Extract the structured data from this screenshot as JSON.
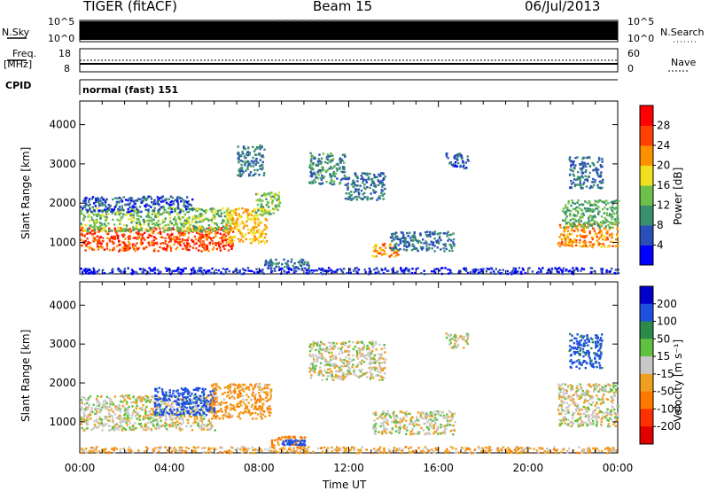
{
  "header": {
    "radar": "TIGER (fitACF)",
    "beam": "Beam 15",
    "date": "06/Jul/2013"
  },
  "status_panels": {
    "nsky_label": "N.Sky",
    "nsky_ticks": [
      "10^5",
      "10^0"
    ],
    "nsearch_label": "N.Search",
    "nsearch_ticks": [
      "10^5",
      "10^0"
    ],
    "freq_label": "Freq.",
    "freq_unit": "[MHz]",
    "freq_ticks": [
      "18",
      "8"
    ],
    "nave_label": "Nave",
    "nave_ticks": [
      "60",
      "0"
    ],
    "cpid_label": "CPID",
    "cpid_value": "normal (fast) 151"
  },
  "chart_data": [
    {
      "type": "heatmap",
      "name": "power",
      "ylabel": "Slant Range [km]",
      "yticks": [
        1000,
        2000,
        3000,
        4000
      ],
      "ylim": [
        200,
        4600
      ],
      "xlim": [
        0,
        24
      ],
      "colorbar": {
        "label": "Power [dB]",
        "ticks": [
          "4",
          "8",
          "12",
          "16",
          "20",
          "24",
          "28"
        ],
        "colors": [
          "#0000ff",
          "#2a4fb8",
          "#3a8f6f",
          "#6ec04a",
          "#f0e020",
          "#ff9000",
          "#ff4000",
          "#ff0000"
        ]
      },
      "regions": [
        {
          "t0": 0.0,
          "t1": 6.8,
          "r0": 800,
          "r1": 1400,
          "level": 26
        },
        {
          "t0": 0.0,
          "t1": 6.8,
          "r0": 1300,
          "r1": 1900,
          "level": 14
        },
        {
          "t0": 0.0,
          "t1": 5.0,
          "r0": 1800,
          "r1": 2200,
          "level": 6
        },
        {
          "t0": 6.5,
          "t1": 8.3,
          "r0": 1000,
          "r1": 1900,
          "level": 20
        },
        {
          "t0": 7.8,
          "t1": 8.9,
          "r0": 1700,
          "r1": 2300,
          "level": 14
        },
        {
          "t0": 7.0,
          "t1": 8.2,
          "r0": 2700,
          "r1": 3500,
          "level": 8
        },
        {
          "t0": 8.2,
          "t1": 10.2,
          "r0": 350,
          "r1": 600,
          "level": 8
        },
        {
          "t0": 10.2,
          "t1": 11.8,
          "r0": 2500,
          "r1": 3300,
          "level": 10
        },
        {
          "t0": 11.8,
          "t1": 13.6,
          "r0": 2100,
          "r1": 2800,
          "level": 8
        },
        {
          "t0": 13.0,
          "t1": 14.2,
          "r0": 650,
          "r1": 1000,
          "level": 22
        },
        {
          "t0": 13.8,
          "t1": 16.7,
          "r0": 800,
          "r1": 1300,
          "level": 8
        },
        {
          "t0": 16.3,
          "t1": 17.3,
          "r0": 2900,
          "r1": 3300,
          "level": 6
        },
        {
          "t0": 21.3,
          "t1": 24.0,
          "r0": 900,
          "r1": 1500,
          "level": 22
        },
        {
          "t0": 21.5,
          "t1": 24.0,
          "r0": 1400,
          "r1": 2100,
          "level": 12
        },
        {
          "t0": 21.8,
          "t1": 23.3,
          "r0": 2400,
          "r1": 3200,
          "level": 8
        },
        {
          "t0": 0.0,
          "t1": 24.0,
          "r0": 220,
          "r1": 380,
          "level": 4
        }
      ]
    },
    {
      "type": "heatmap",
      "name": "velocity",
      "ylabel": "Slant Range [km]",
      "yticks": [
        1000,
        2000,
        3000,
        4000
      ],
      "ylim": [
        200,
        4600
      ],
      "xlim": [
        0,
        24
      ],
      "colorbar": {
        "label": "Velocity [m s⁻¹]",
        "ticks": [
          "200",
          "100",
          "50",
          "15",
          "-15",
          "-50",
          "-100",
          "-200"
        ],
        "colors": [
          "#0000c8",
          "#1e50e0",
          "#2c8a4a",
          "#60c040",
          "#c8c8c8",
          "#f0a020",
          "#ff7800",
          "#ff3000",
          "#e00000"
        ]
      },
      "regions": [
        {
          "t0": 0.0,
          "t1": 6.0,
          "r0": 800,
          "r1": 1700,
          "level": 0
        },
        {
          "t0": 3.3,
          "t1": 6.0,
          "r0": 1200,
          "r1": 1900,
          "level": 150
        },
        {
          "t0": 5.8,
          "t1": 8.5,
          "r0": 1100,
          "r1": 2000,
          "level": -40
        },
        {
          "t0": 8.5,
          "t1": 10.0,
          "r0": 400,
          "r1": 650,
          "level": -60
        },
        {
          "t0": 9.0,
          "t1": 10.0,
          "r0": 420,
          "r1": 560,
          "level": 150
        },
        {
          "t0": 10.2,
          "t1": 13.6,
          "r0": 2100,
          "r1": 3100,
          "level": 0
        },
        {
          "t0": 13.0,
          "t1": 16.7,
          "r0": 700,
          "r1": 1300,
          "level": 0
        },
        {
          "t0": 16.3,
          "t1": 17.3,
          "r0": 2900,
          "r1": 3300,
          "level": 0
        },
        {
          "t0": 21.3,
          "t1": 24.0,
          "r0": 900,
          "r1": 2000,
          "level": 0
        },
        {
          "t0": 21.8,
          "t1": 23.3,
          "r0": 2400,
          "r1": 3300,
          "level": 120
        },
        {
          "t0": 0.0,
          "t1": 24.0,
          "r0": 220,
          "r1": 380,
          "level": -30
        }
      ]
    }
  ],
  "time_axis": {
    "xlabel": "Time UT",
    "ticks": [
      "00:00",
      "04:00",
      "08:00",
      "12:00",
      "16:00",
      "20:00",
      "00:00"
    ]
  }
}
